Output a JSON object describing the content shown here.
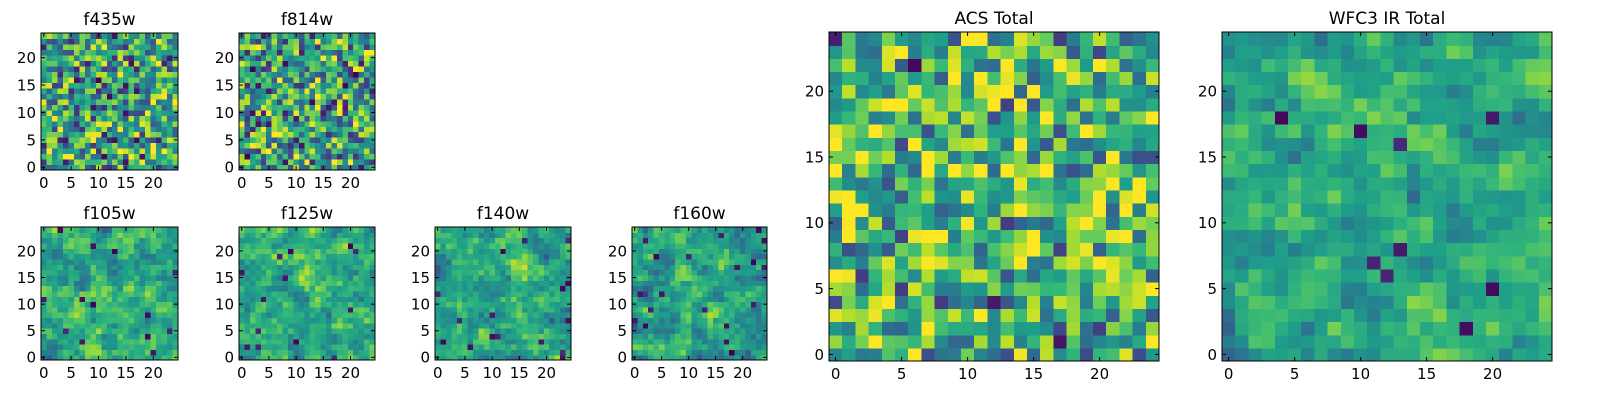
{
  "figure": {
    "background": "#ffffff"
  },
  "colormap": {
    "name": "viridis",
    "stops": [
      "#440154",
      "#482878",
      "#3e4989",
      "#31688e",
      "#26828e",
      "#1f9e89",
      "#35b779",
      "#6ece58",
      "#b5de2b",
      "#fde725"
    ]
  },
  "chart_data": [
    {
      "type": "heatmap",
      "title": "f435w",
      "rows": 25,
      "cols": 25,
      "xlim": [
        0,
        24
      ],
      "ylim": [
        0,
        24
      ],
      "xticks": [
        0,
        5,
        10,
        15,
        20
      ],
      "yticks": [
        0,
        5,
        10,
        15,
        20
      ],
      "seed": 11,
      "lo": 0.0,
      "hi": 1.0,
      "center": 0.58,
      "smooth": 0,
      "dark_fraction": 0.035
    },
    {
      "type": "heatmap",
      "title": "f814w",
      "rows": 25,
      "cols": 25,
      "xlim": [
        0,
        24
      ],
      "ylim": [
        0,
        24
      ],
      "xticks": [
        0,
        5,
        10,
        15,
        20
      ],
      "yticks": [
        0,
        5,
        10,
        15,
        20
      ],
      "seed": 23,
      "lo": 0.0,
      "hi": 1.0,
      "center": 0.6,
      "smooth": 0,
      "dark_fraction": 0.05
    },
    {
      "type": "heatmap",
      "title": "f105w",
      "rows": 25,
      "cols": 25,
      "xlim": [
        0,
        24
      ],
      "ylim": [
        0,
        24
      ],
      "xticks": [
        0,
        5,
        10,
        15,
        20
      ],
      "yticks": [
        0,
        5,
        10,
        15,
        20
      ],
      "seed": 37,
      "lo": 0.0,
      "hi": 1.0,
      "center": 0.62,
      "smooth": 1,
      "dark_fraction": 0.02
    },
    {
      "type": "heatmap",
      "title": "f125w",
      "rows": 25,
      "cols": 25,
      "xlim": [
        0,
        24
      ],
      "ylim": [
        0,
        24
      ],
      "xticks": [
        0,
        5,
        10,
        15,
        20
      ],
      "yticks": [
        0,
        5,
        10,
        15,
        20
      ],
      "seed": 41,
      "lo": 0.0,
      "hi": 1.0,
      "center": 0.62,
      "smooth": 1,
      "dark_fraction": 0.02
    },
    {
      "type": "heatmap",
      "title": "f140w",
      "rows": 25,
      "cols": 25,
      "xlim": [
        0,
        24
      ],
      "ylim": [
        0,
        24
      ],
      "xticks": [
        0,
        5,
        10,
        15,
        20
      ],
      "yticks": [
        0,
        5,
        10,
        15,
        20
      ],
      "seed": 53,
      "lo": 0.0,
      "hi": 1.0,
      "center": 0.6,
      "smooth": 1,
      "dark_fraction": 0.025
    },
    {
      "type": "heatmap",
      "title": "f160w",
      "rows": 25,
      "cols": 25,
      "xlim": [
        0,
        24
      ],
      "ylim": [
        0,
        24
      ],
      "xticks": [
        0,
        5,
        10,
        15,
        20
      ],
      "yticks": [
        0,
        5,
        10,
        15,
        20
      ],
      "seed": 67,
      "lo": 0.0,
      "hi": 1.0,
      "center": 0.6,
      "smooth": 1,
      "dark_fraction": 0.03
    },
    {
      "type": "heatmap",
      "title": "ACS Total",
      "rows": 25,
      "cols": 25,
      "xlim": [
        0,
        24
      ],
      "ylim": [
        0,
        24
      ],
      "xticks": [
        0,
        5,
        10,
        15,
        20
      ],
      "yticks": [
        0,
        5,
        10,
        15,
        20
      ],
      "seed": 79,
      "lo": 0.0,
      "hi": 1.0,
      "center": 0.66,
      "smooth": 0,
      "dark_fraction": 0.015
    },
    {
      "type": "heatmap",
      "title": "WFC3 IR Total",
      "rows": 25,
      "cols": 25,
      "xlim": [
        0,
        24
      ],
      "ylim": [
        0,
        24
      ],
      "xticks": [
        0,
        5,
        10,
        15,
        20
      ],
      "yticks": [
        0,
        5,
        10,
        15,
        20
      ],
      "seed": 97,
      "lo": 0.0,
      "hi": 1.0,
      "center": 0.6,
      "smooth": 1,
      "dark_fraction": 0.015
    }
  ]
}
